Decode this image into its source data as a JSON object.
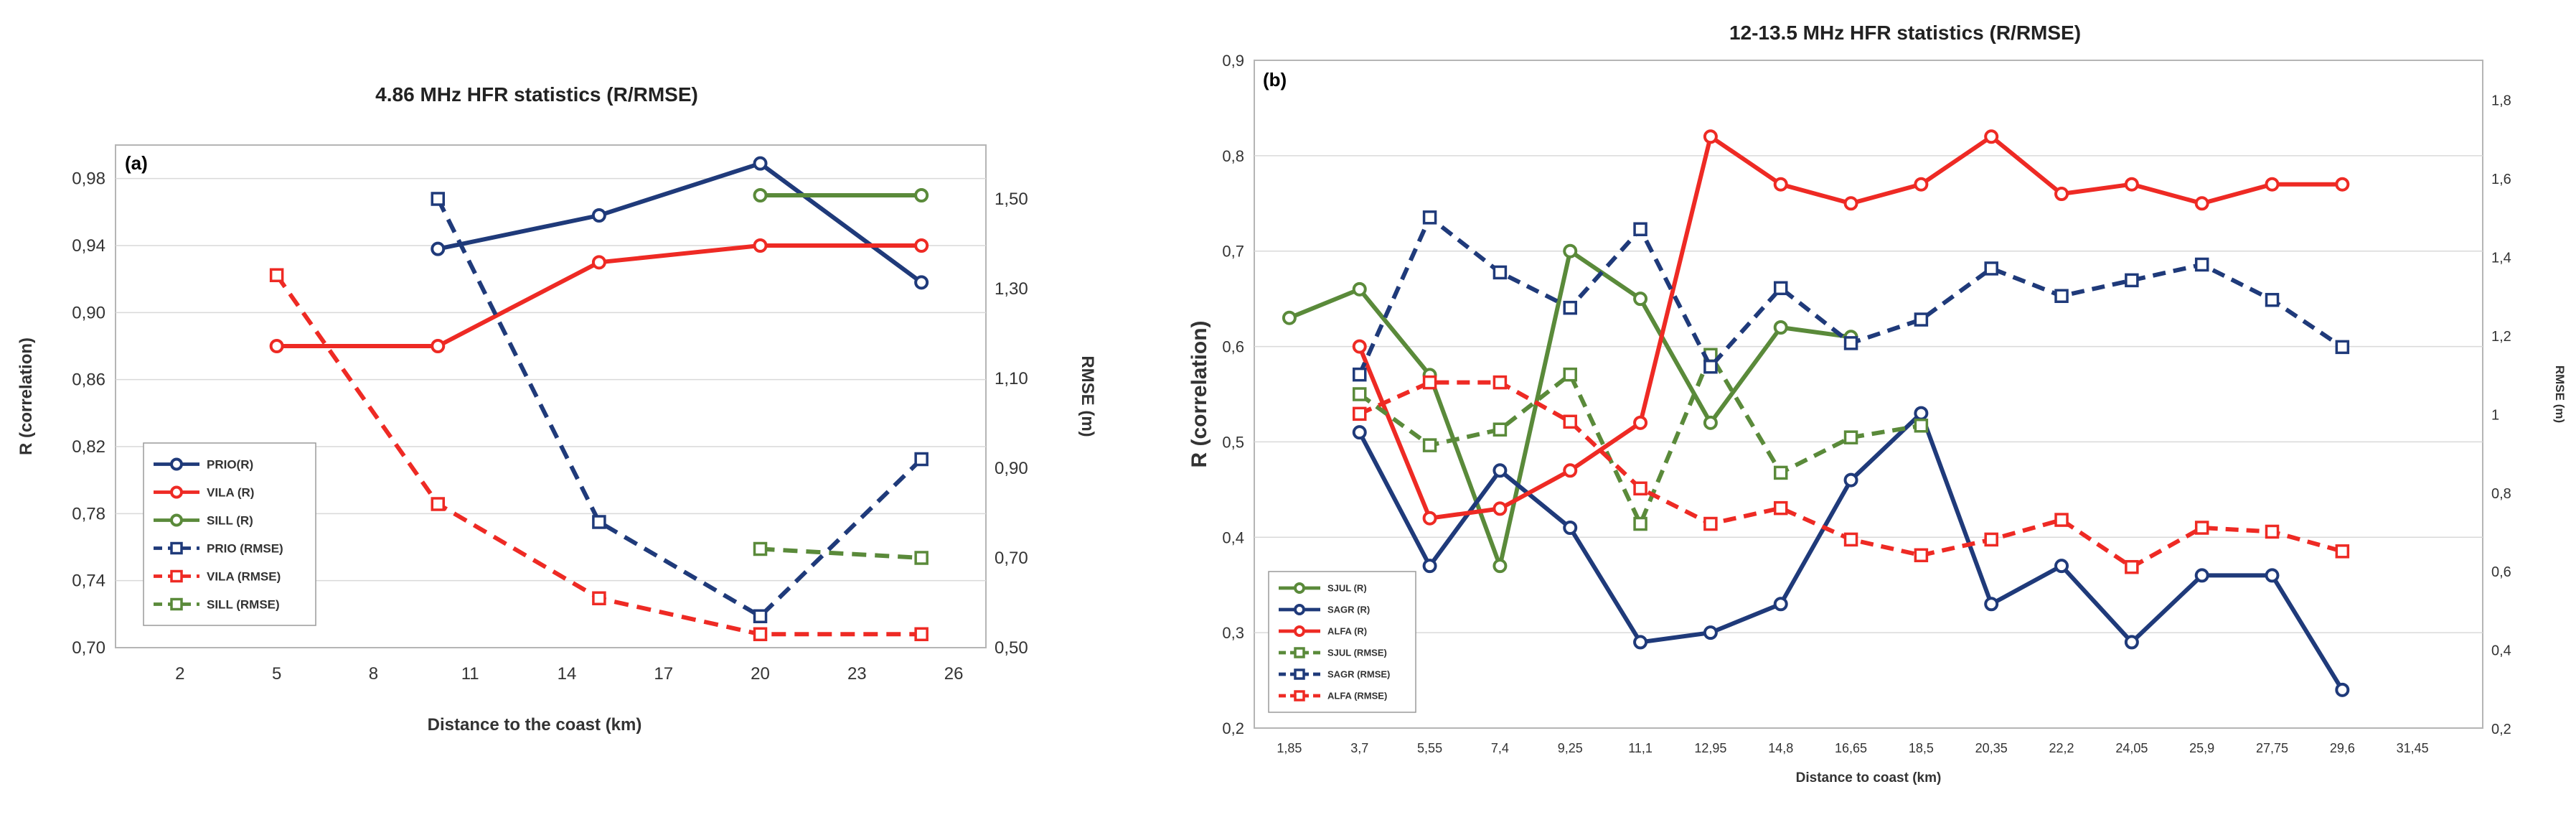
{
  "chart_data": [
    {
      "type": "line",
      "title": "4.86 MHz HFR statistics (R/RMSE)",
      "panel_label": "(a)",
      "xlabel": "Distance to the coast (km)",
      "ylabel": "R (correlation)",
      "y2label": "RMSE (m)",
      "xlim": [
        0,
        27
      ],
      "x_ticks": [
        "2",
        "5",
        "8",
        "11",
        "14",
        "17",
        "20",
        "23",
        "26"
      ],
      "ylim": [
        0.7,
        1.0
      ],
      "y_ticks": [
        "0,70",
        "0,74",
        "0,78",
        "0,82",
        "0,86",
        "0,90",
        "0,94",
        "0,98"
      ],
      "y2lim": [
        0.5,
        1.62
      ],
      "y2_ticks": [
        "0,50",
        "0,70",
        "0,90",
        "1,10",
        "1,30",
        "1,50"
      ],
      "legend_position": "lower-left",
      "series": [
        {
          "name": "PRIO(R)",
          "axis": "left",
          "style": "solid",
          "marker": "circle",
          "color": "#1f3a7a",
          "points": [
            [
              10,
              0.938
            ],
            [
              15,
              0.958
            ],
            [
              20,
              0.989
            ],
            [
              25,
              0.918
            ]
          ]
        },
        {
          "name": "VILA (R)",
          "axis": "left",
          "style": "solid",
          "marker": "circle",
          "color": "#ee2a24",
          "points": [
            [
              5,
              0.88
            ],
            [
              10,
              0.88
            ],
            [
              15,
              0.93
            ],
            [
              20,
              0.94
            ],
            [
              25,
              0.94
            ]
          ]
        },
        {
          "name": "SILL (R)",
          "axis": "left",
          "style": "solid",
          "marker": "circle",
          "color": "#5a8a3a",
          "points": [
            [
              20,
              0.97
            ],
            [
              25,
              0.97
            ]
          ]
        },
        {
          "name": "PRIO (RMSE)",
          "axis": "right",
          "style": "dashed",
          "marker": "square",
          "color": "#1f3a7a",
          "points": [
            [
              10,
              1.5
            ],
            [
              15,
              0.78
            ],
            [
              20,
              0.57
            ],
            [
              25,
              0.92
            ]
          ]
        },
        {
          "name": "VILA (RMSE)",
          "axis": "right",
          "style": "dashed",
          "marker": "square",
          "color": "#ee2a24",
          "points": [
            [
              5,
              1.33
            ],
            [
              10,
              0.82
            ],
            [
              15,
              0.61
            ],
            [
              20,
              0.53
            ],
            [
              25,
              0.53
            ]
          ]
        },
        {
          "name": "SILL (RMSE)",
          "axis": "right",
          "style": "dashed",
          "marker": "square",
          "color": "#5a8a3a",
          "points": [
            [
              20,
              0.72
            ],
            [
              25,
              0.7
            ]
          ]
        }
      ]
    },
    {
      "type": "line",
      "title": "12-13.5 MHz HFR statistics (R/RMSE)",
      "panel_label": "(b)",
      "xlabel": "Distance to coast (km)",
      "ylabel": "R (correlation)",
      "y2label": "RMSE (m)",
      "categories": [
        "1,85",
        "3,7",
        "5,55",
        "7,4",
        "9,25",
        "11,1",
        "12,95",
        "14,8",
        "16,65",
        "18,5",
        "20,35",
        "22,2",
        "24,05",
        "25,9",
        "27,75",
        "29,6",
        "31,45"
      ],
      "ylim": [
        0.2,
        0.9
      ],
      "y_ticks": [
        "0,2",
        "0,3",
        "0,4",
        "0,5",
        "0,6",
        "0,7",
        "0,8",
        "0,9"
      ],
      "y2lim": [
        0.2,
        1.9
      ],
      "y2_ticks": [
        "0,2",
        "0,4",
        "0,6",
        "0,8",
        "1",
        "1,2",
        "1,4",
        "1,6",
        "1,8"
      ],
      "legend_position": "lower-left",
      "series": [
        {
          "name": "SJUL (R)",
          "axis": "left",
          "style": "solid",
          "marker": "circle",
          "color": "#5a8a3a",
          "values": [
            0.63,
            0.66,
            0.57,
            0.37,
            0.7,
            0.65,
            0.52,
            0.62,
            0.61,
            null,
            null,
            null,
            null,
            null,
            null,
            null,
            null
          ]
        },
        {
          "name": "SAGR (R)",
          "axis": "left",
          "style": "solid",
          "marker": "circle",
          "color": "#1f3a7a",
          "values": [
            null,
            0.51,
            0.37,
            0.47,
            0.41,
            0.29,
            0.3,
            0.33,
            0.46,
            0.53,
            0.33,
            0.37,
            0.29,
            0.36,
            0.36,
            0.24,
            null
          ]
        },
        {
          "name": "ALFA (R)",
          "axis": "left",
          "style": "solid",
          "marker": "circle",
          "color": "#ee2a24",
          "values": [
            null,
            0.6,
            0.42,
            0.43,
            0.47,
            0.52,
            0.82,
            0.77,
            0.75,
            0.77,
            0.82,
            0.76,
            0.77,
            0.75,
            0.77,
            0.77,
            null
          ]
        },
        {
          "name": "SJUL (RMSE)",
          "axis": "right",
          "style": "dashed",
          "marker": "square",
          "color": "#5a8a3a",
          "values": [
            null,
            1.05,
            0.92,
            0.96,
            1.1,
            0.72,
            1.15,
            0.85,
            0.94,
            0.97,
            null,
            null,
            null,
            null,
            null,
            null,
            null
          ]
        },
        {
          "name": "SAGR (RMSE)",
          "axis": "right",
          "style": "dashed",
          "marker": "square",
          "color": "#1f3a7a",
          "values": [
            null,
            1.1,
            1.5,
            1.36,
            1.27,
            1.47,
            1.12,
            1.32,
            1.18,
            1.24,
            1.37,
            1.3,
            1.34,
            1.38,
            1.29,
            1.17,
            null
          ]
        },
        {
          "name": "ALFA (RMSE)",
          "axis": "right",
          "style": "dashed",
          "marker": "square",
          "color": "#ee2a24",
          "values": [
            null,
            1.0,
            1.08,
            1.08,
            0.98,
            0.81,
            0.72,
            0.76,
            0.68,
            0.64,
            0.68,
            0.73,
            0.61,
            0.71,
            0.7,
            0.65,
            null
          ]
        }
      ]
    }
  ]
}
